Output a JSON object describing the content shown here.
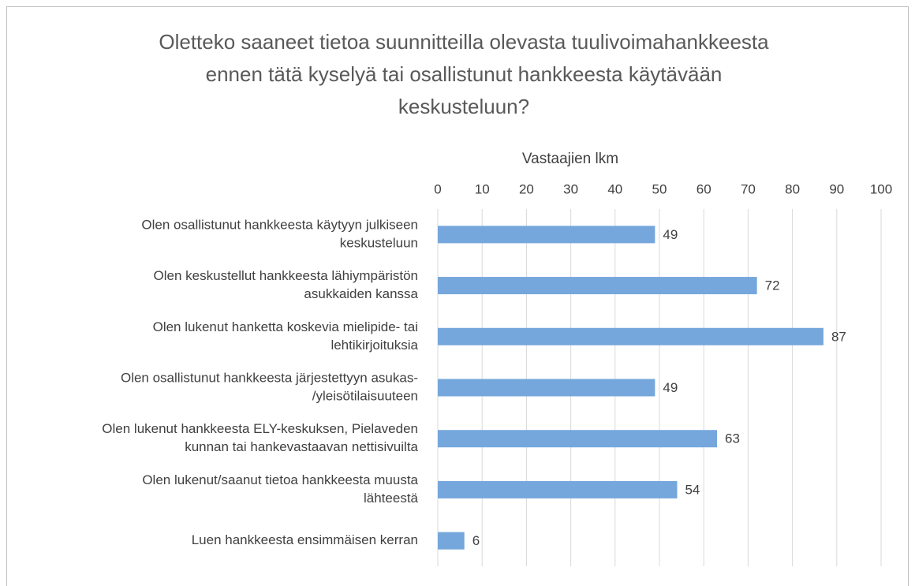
{
  "chart_data": {
    "type": "barh",
    "title": [
      "Oletteko saaneet tietoa suunnitteilla olevasta tuulivoimahankkeesta",
      "ennen tätä kyselyä tai osallistunut hankkeesta käytävään",
      "keskusteluun?"
    ],
    "x_label": "Vastaajien lkm",
    "categories": [
      [
        "Olen osallistunut hankkeesta käytyyn julkiseen",
        "keskusteluun"
      ],
      [
        "Olen keskustellut hankkeesta lähiympäristön",
        "asukkaiden kanssa"
      ],
      [
        "Olen lukenut hanketta koskevia mielipide- tai",
        "lehtikirjoituksia"
      ],
      [
        "Olen osallistunut hankkeesta järjestettyyn asukas-",
        "/yleisötilaisuuteen"
      ],
      [
        "Olen lukenut hankkeesta ELY-keskuksen, Pielaveden",
        "kunnan tai hankevastaavan nettisivuilta"
      ],
      [
        "Olen lukenut/saanut tietoa hankkeesta muusta",
        "lähteestä"
      ],
      [
        "Luen hankkeesta ensimmäisen kerran"
      ]
    ],
    "values": [
      49,
      72,
      87,
      49,
      63,
      54,
      6
    ],
    "color": "#75a7dc",
    "xlim": [
      0,
      100
    ],
    "xticks": [
      0,
      10,
      20,
      30,
      40,
      50,
      60,
      70,
      80,
      90,
      100
    ],
    "grid": true
  }
}
